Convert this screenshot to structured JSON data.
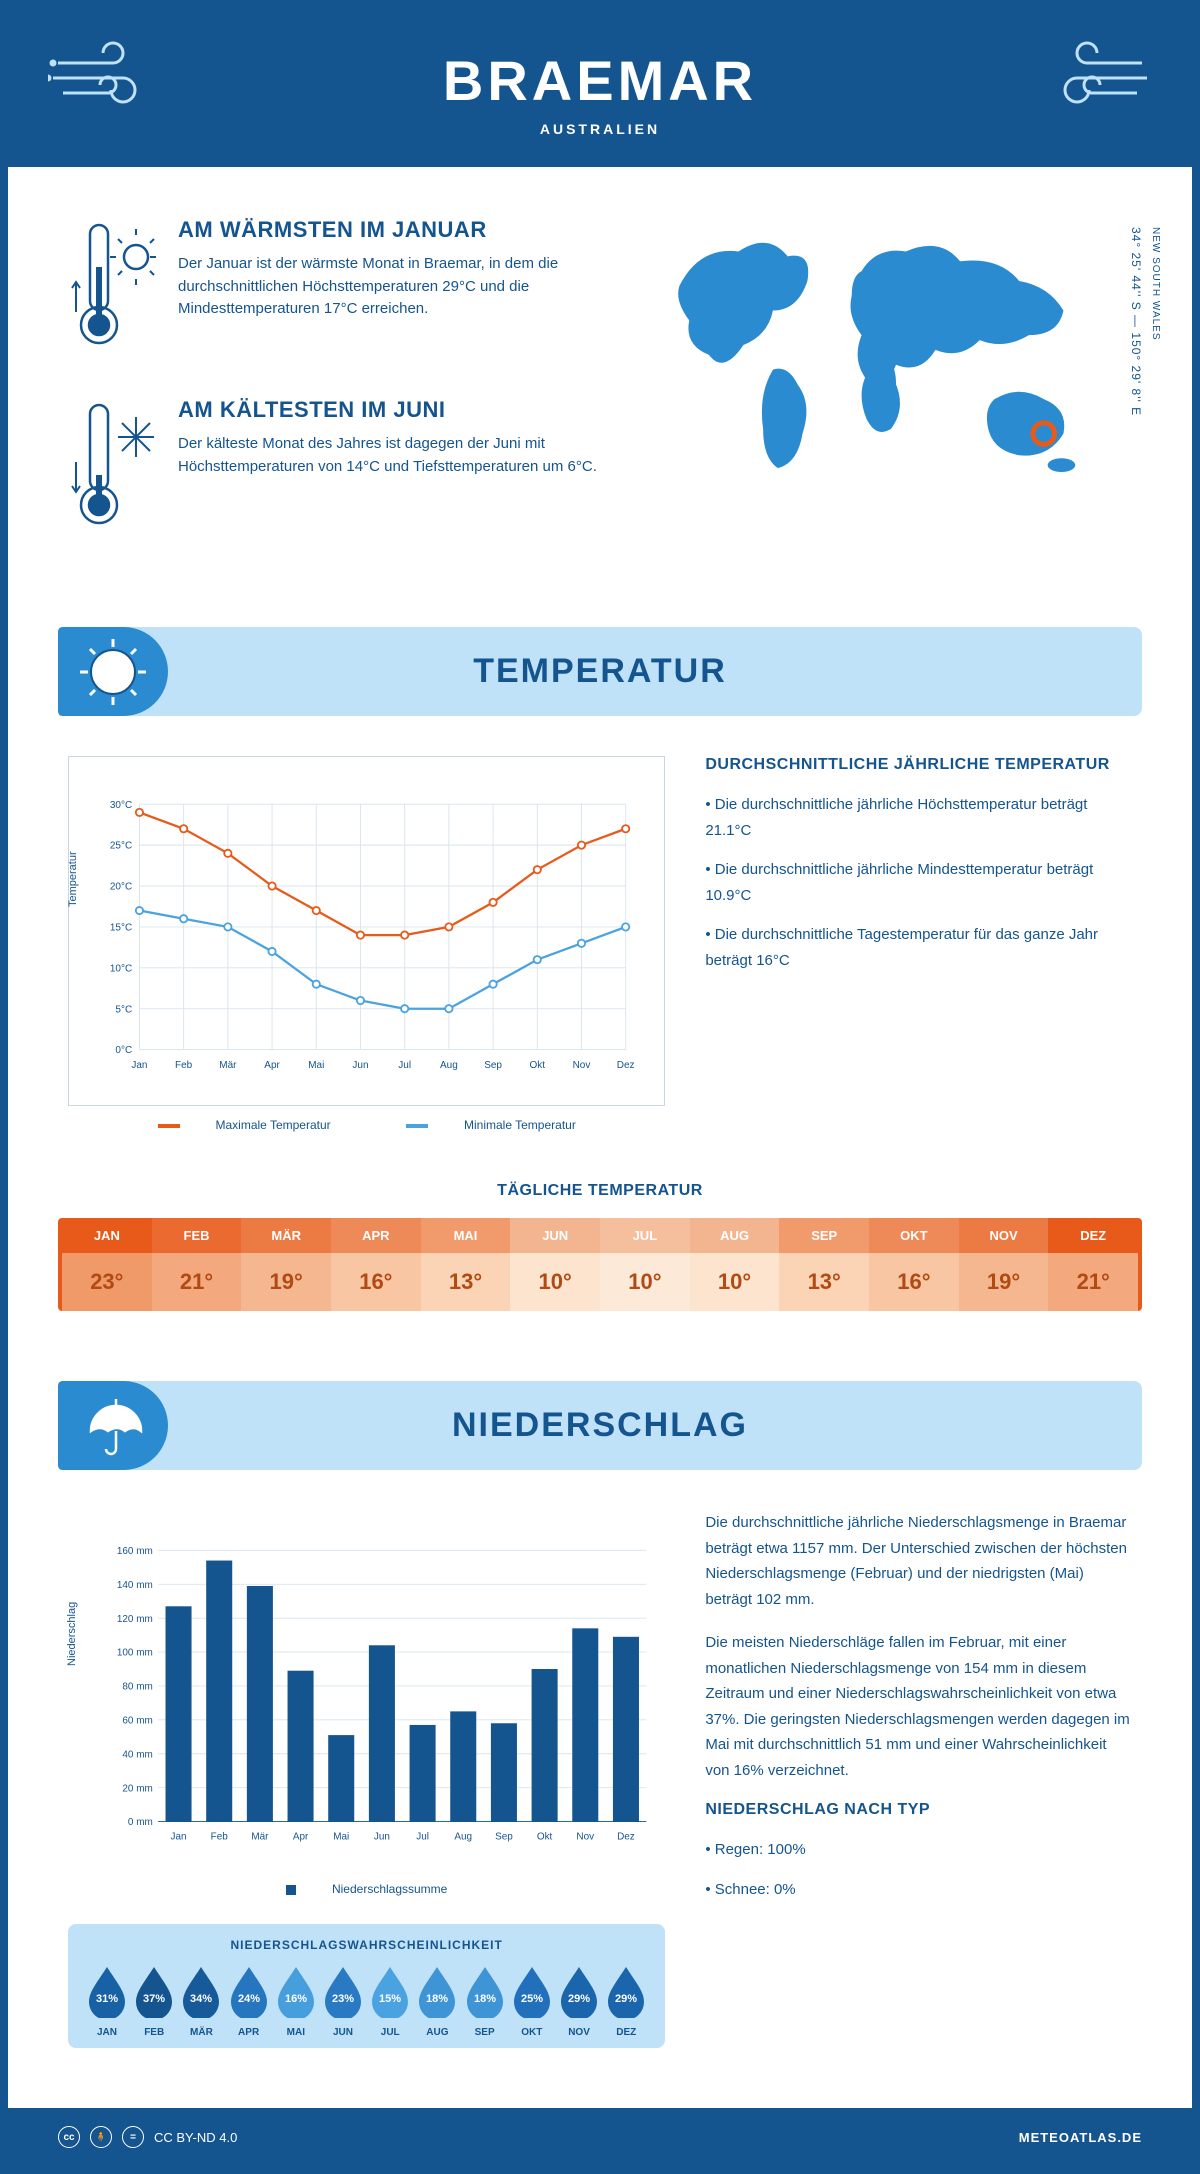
{
  "header": {
    "title": "BRAEMAR",
    "subtitle": "AUSTRALIEN"
  },
  "location": {
    "region": "NEW SOUTH WALES",
    "coords": "34° 25' 44'' S — 150° 29' 8'' E"
  },
  "warm": {
    "title": "AM WÄRMSTEN IM JANUAR",
    "text": "Der Januar ist der wärmste Monat in Braemar, in dem die durchschnittlichen Höchsttemperaturen 29°C und die Mindesttemperaturen 17°C erreichen."
  },
  "cold": {
    "title": "AM KÄLTESTEN IM JUNI",
    "text": "Der kälteste Monat des Jahres ist dagegen der Juni mit Höchsttemperaturen von 14°C und Tiefsttemperaturen um 6°C."
  },
  "temp_section": {
    "title": "TEMPERATUR"
  },
  "temp_chart": {
    "months": [
      "Jan",
      "Feb",
      "Mär",
      "Apr",
      "Mai",
      "Jun",
      "Jul",
      "Aug",
      "Sep",
      "Okt",
      "Nov",
      "Dez"
    ],
    "max": [
      29,
      27,
      24,
      20,
      17,
      14,
      14,
      15,
      18,
      22,
      25,
      27
    ],
    "min": [
      17,
      16,
      15,
      12,
      8,
      6,
      5,
      5,
      8,
      11,
      13,
      15
    ],
    "ylim": [
      0,
      30
    ],
    "ytick": 5,
    "ylabel": "Temperatur",
    "colors": {
      "max": "#e85a1a",
      "min": "#4aa3e0",
      "grid": "#d8e4ee",
      "text": "#14548f"
    },
    "legend": {
      "max": "Maximale Temperatur",
      "min": "Minimale Temperatur"
    }
  },
  "temp_notes": {
    "title": "DURCHSCHNITTLICHE JÄHRLICHE TEMPERATUR",
    "items": [
      "Die durchschnittliche jährliche Höchsttemperatur beträgt 21.1°C",
      "Die durchschnittliche jährliche Mindesttemperatur beträgt 10.9°C",
      "Die durchschnittliche Tagestemperatur für das ganze Jahr beträgt 16°C"
    ]
  },
  "daily": {
    "title": "TÄGLICHE TEMPERATUR",
    "months": [
      "JAN",
      "FEB",
      "MÄR",
      "APR",
      "MAI",
      "JUN",
      "JUL",
      "AUG",
      "SEP",
      "OKT",
      "NOV",
      "DEZ"
    ],
    "values": [
      "23°",
      "21°",
      "19°",
      "16°",
      "13°",
      "10°",
      "10°",
      "10°",
      "13°",
      "16°",
      "19°",
      "21°"
    ],
    "head_colors": [
      "#e85a1a",
      "#ea6a2f",
      "#ec7a43",
      "#ee8a58",
      "#f19b6d",
      "#f3b58f",
      "#f5be9c",
      "#f3b58f",
      "#f19b6d",
      "#ee8a58",
      "#ec7a43",
      "#e85a1a"
    ],
    "val_colors": [
      "#f09a6a",
      "#f3a97d",
      "#f5b78f",
      "#f8c6a2",
      "#fad4b5",
      "#fce4cf",
      "#fde9d7",
      "#fce4cf",
      "#fad4b5",
      "#f8c6a2",
      "#f5b78f",
      "#f3a97d"
    ],
    "text_dark": "#b24a14"
  },
  "precip_section": {
    "title": "NIEDERSCHLAG"
  },
  "precip_chart": {
    "months": [
      "Jan",
      "Feb",
      "Mär",
      "Apr",
      "Mai",
      "Jun",
      "Jul",
      "Aug",
      "Sep",
      "Okt",
      "Nov",
      "Dez"
    ],
    "values": [
      127,
      154,
      139,
      89,
      51,
      104,
      57,
      65,
      58,
      90,
      114,
      109
    ],
    "ylim": [
      0,
      160
    ],
    "ytick": 20,
    "ylabel": "Niederschlag",
    "color": "#14548f",
    "grid": "#d8e4ee",
    "text": "#14548f",
    "legend": "Niederschlagssumme"
  },
  "precip_prob": {
    "title": "NIEDERSCHLAGSWAHRSCHEINLICHKEIT",
    "months": [
      "JAN",
      "FEB",
      "MÄR",
      "APR",
      "MAI",
      "JUN",
      "JUL",
      "AUG",
      "SEP",
      "OKT",
      "NOV",
      "DEZ"
    ],
    "values": [
      31,
      37,
      34,
      24,
      16,
      23,
      15,
      18,
      18,
      25,
      29,
      29
    ],
    "color_scale": [
      "#4aa3e0",
      "#1e6bb8",
      "#14548f"
    ]
  },
  "precip_text": {
    "p1": "Die durchschnittliche jährliche Niederschlagsmenge in Braemar beträgt etwa 1157 mm. Der Unterschied zwischen der höchsten Niederschlagsmenge (Februar) und der niedrigsten (Mai) beträgt 102 mm.",
    "p2": "Die meisten Niederschläge fallen im Februar, mit einer monatlichen Niederschlagsmenge von 154 mm in diesem Zeitraum und einer Niederschlagswahrscheinlichkeit von etwa 37%. Die geringsten Niederschlagsmengen werden dagegen im Mai mit durchschnittlich 51 mm und einer Wahrscheinlichkeit von 16% verzeichnet.",
    "type_title": "NIEDERSCHLAG NACH TYP",
    "types": [
      "Regen: 100%",
      "Schnee: 0%"
    ]
  },
  "footer": {
    "license": "CC BY-ND 4.0",
    "site": "METEOATLAS.DE"
  }
}
